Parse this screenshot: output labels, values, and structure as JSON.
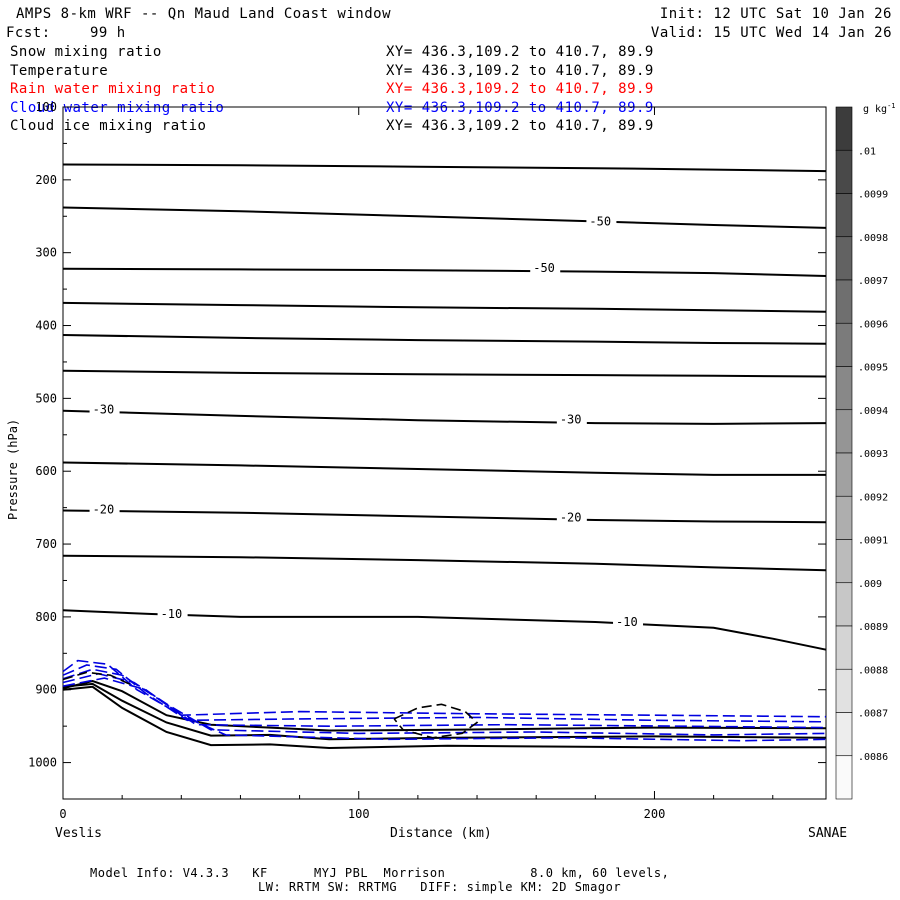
{
  "header": {
    "title": "AMPS 8-km WRF -- Qn Maud Land Coast window",
    "init": "Init: 12 UTC Sat 10 Jan 26",
    "fcst_label": "Fcst:",
    "fcst_value": "99 h",
    "valid": "Valid: 15 UTC Wed 14 Jan 26"
  },
  "fields": [
    {
      "name": "Snow mixing ratio",
      "xy": "XY= 436.3,109.2 to 410.7, 89.9",
      "color": "#000000"
    },
    {
      "name": "Temperature",
      "xy": "XY= 436.3,109.2 to 410.7, 89.9",
      "color": "#000000"
    },
    {
      "name": "Rain water mixing ratio",
      "xy": "XY= 436.3,109.2 to 410.7, 89.9",
      "color": "#ff0000"
    },
    {
      "name": "Cloud water mixing ratio",
      "xy": "XY= 436.3,109.2 to 410.7, 89.9",
      "color": "#0000ff"
    },
    {
      "name": "Cloud ice mixing ratio",
      "xy": "XY= 436.3,109.2 to 410.7, 89.9",
      "color": "#000000"
    }
  ],
  "footer": {
    "line1": "Model Info: V4.3.3   KF      MYJ PBL  Morrison           8.0 km, 60 levels,",
    "line2": "LW: RRTM SW: RRTMG   DIFF: simple KM: 2D Smagor"
  },
  "chart_data": {
    "type": "line",
    "title": "AMPS 8-km WRF -- Qn Maud Land Coast window",
    "xlabel": "Distance (km)",
    "ylabel": "Pressure (hPa)",
    "xlim": [
      0,
      258
    ],
    "ylim": [
      1050,
      100
    ],
    "xticks": [
      0,
      100,
      200
    ],
    "yticks": [
      100,
      200,
      300,
      400,
      500,
      600,
      700,
      800,
      900,
      1000
    ],
    "x_start_label": "Veslis",
    "x_end_label": "SANAE",
    "colorbar": {
      "unit": "g kg-1",
      "levels": [
        ".01",
        ".0099",
        ".0098",
        ".0097",
        ".0096",
        ".0095",
        ".0094",
        ".0093",
        ".0092",
        ".0091",
        ".009",
        ".0089",
        ".0088",
        ".0087",
        ".0086"
      ]
    },
    "isotherms": [
      {
        "x": [
          0,
          60,
          120,
          180,
          220,
          258
        ],
        "p": [
          179,
          180,
          182,
          184,
          186,
          188
        ]
      },
      {
        "x": [
          0,
          60,
          120,
          180,
          220,
          258
        ],
        "p": [
          238,
          243,
          250,
          257,
          262,
          266
        ]
      },
      {
        "x": [
          0,
          60,
          120,
          180,
          220,
          258
        ],
        "p": [
          322,
          323,
          324,
          326,
          328,
          332
        ]
      },
      {
        "x": [
          0,
          60,
          120,
          180,
          220,
          258
        ],
        "p": [
          369,
          372,
          375,
          377,
          379,
          381
        ]
      },
      {
        "x": [
          0,
          60,
          120,
          180,
          220,
          258
        ],
        "p": [
          413,
          417,
          420,
          422,
          424,
          425
        ]
      },
      {
        "x": [
          0,
          60,
          120,
          180,
          220,
          258
        ],
        "p": [
          462,
          465,
          467,
          468,
          469,
          470
        ]
      },
      {
        "x": [
          0,
          60,
          120,
          180,
          220,
          258
        ],
        "p": [
          517,
          524,
          530,
          534,
          535,
          534
        ]
      },
      {
        "x": [
          0,
          60,
          120,
          180,
          220,
          258
        ],
        "p": [
          588,
          592,
          597,
          602,
          605,
          605
        ]
      },
      {
        "x": [
          0,
          60,
          120,
          180,
          220,
          258
        ],
        "p": [
          654,
          657,
          662,
          667,
          669,
          670
        ]
      },
      {
        "x": [
          0,
          60,
          120,
          180,
          220,
          258
        ],
        "p": [
          716,
          718,
          722,
          727,
          732,
          736
        ]
      },
      {
        "x": [
          0,
          30,
          60,
          120,
          180,
          220,
          240,
          258
        ],
        "p": [
          791,
          796,
          800,
          800,
          807,
          815,
          830,
          845
        ]
      },
      {
        "x": [
          0,
          10,
          20,
          35,
          50,
          70,
          90,
          130,
          200,
          258
        ],
        "p": [
          898,
          888,
          902,
          935,
          948,
          952,
          956,
          955,
          952,
          953
        ]
      },
      {
        "x": [
          0,
          10,
          20,
          35,
          50,
          70,
          90,
          130,
          200,
          258
        ],
        "p": [
          896,
          892,
          915,
          945,
          963,
          962,
          968,
          966,
          964,
          966
        ]
      },
      {
        "x": [
          0,
          10,
          20,
          35,
          50,
          70,
          90,
          130,
          200,
          258
        ],
        "p": [
          900,
          896,
          925,
          958,
          976,
          975,
          980,
          977,
          979,
          979
        ]
      }
    ],
    "contour_labels": [
      {
        "text": "-50",
        "x": 178,
        "p": 260
      },
      {
        "text": "-50",
        "x": 159,
        "p": 324
      },
      {
        "text": "-30",
        "x": 10,
        "p": 518
      },
      {
        "text": "-30",
        "x": 168,
        "p": 532
      },
      {
        "text": "-20",
        "x": 10,
        "p": 655
      },
      {
        "text": "-20",
        "x": 168,
        "p": 666
      },
      {
        "text": "-10",
        "x": 33,
        "p": 799
      },
      {
        "text": "-10",
        "x": 187,
        "p": 810
      }
    ],
    "cloud_water": [
      {
        "x": [
          0,
          5,
          15,
          25,
          40,
          80,
          140,
          200,
          258
        ],
        "p": [
          875,
          860,
          865,
          900,
          935,
          930,
          933,
          935,
          937
        ]
      },
      {
        "x": [
          0,
          8,
          18,
          28,
          42,
          80,
          140,
          200,
          258
        ],
        "p": [
          880,
          866,
          872,
          905,
          942,
          940,
          938,
          942,
          944
        ]
      },
      {
        "x": [
          0,
          10,
          20,
          32,
          45,
          90,
          150,
          210,
          258
        ],
        "p": [
          885,
          872,
          880,
          912,
          948,
          950,
          948,
          950,
          952
        ]
      },
      {
        "x": [
          0,
          12,
          24,
          36,
          50,
          100,
          160,
          220,
          258
        ],
        "p": [
          890,
          878,
          890,
          922,
          955,
          960,
          958,
          962,
          960
        ]
      },
      {
        "x": [
          0,
          14,
          28,
          40,
          55,
          110,
          170,
          230,
          258
        ],
        "p": [
          895,
          884,
          900,
          935,
          962,
          968,
          966,
          970,
          968
        ]
      }
    ],
    "cloud_ice": [
      {
        "x": [
          0,
          8,
          16,
          24
        ],
        "p": [
          886,
          876,
          880,
          895
        ]
      },
      {
        "x": [
          112,
          120,
          128,
          136,
          140,
          135,
          125,
          115,
          112
        ],
        "p": [
          940,
          925,
          920,
          930,
          945,
          960,
          966,
          955,
          940
        ]
      }
    ]
  }
}
